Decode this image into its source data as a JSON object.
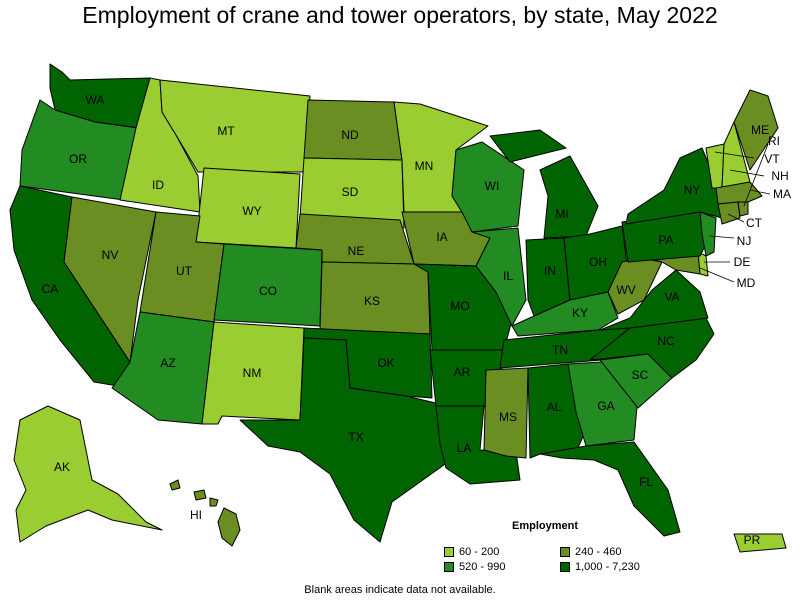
{
  "title": "Employment of crane and tower operators, by state, May 2022",
  "footnote": "Blank areas indicate data not available.",
  "colors": {
    "bin1": "#9acd32",
    "bin2": "#6b8e23",
    "bin3": "#228b22",
    "bin4": "#006400"
  },
  "legend": {
    "title": "Employment",
    "items": [
      {
        "label": "60 - 200",
        "bin": "bin1"
      },
      {
        "label": "240 - 460",
        "bin": "bin2"
      },
      {
        "label": "520 - 990",
        "bin": "bin3"
      },
      {
        "label": "1,000 - 7,230",
        "bin": "bin4"
      }
    ]
  },
  "states": {
    "WA": "bin4",
    "OR": "bin3",
    "CA": "bin4",
    "ID": "bin1",
    "NV": "bin2",
    "MT": "bin1",
    "WY": "bin1",
    "UT": "bin2",
    "AZ": "bin3",
    "CO": "bin3",
    "NM": "bin1",
    "ND": "bin2",
    "SD": "bin1",
    "NE": "bin2",
    "KS": "bin2",
    "OK": "bin4",
    "TX": "bin4",
    "MN": "bin1",
    "IA": "bin2",
    "MO": "bin4",
    "AR": "bin4",
    "LA": "bin4",
    "WI": "bin3",
    "IL": "bin3",
    "MI": "bin4",
    "IN": "bin4",
    "OH": "bin4",
    "KY": "bin3",
    "TN": "bin4",
    "MS": "bin2",
    "AL": "bin4",
    "GA": "bin3",
    "FL": "bin4",
    "SC": "bin3",
    "NC": "bin4",
    "VA": "bin4",
    "WV": "bin2",
    "PA": "bin4",
    "NY": "bin4",
    "ME": "bin2",
    "NH": "bin1",
    "VT": "bin1",
    "MA": "bin2",
    "RI": "bin2",
    "CT": "bin2",
    "NJ": "bin3",
    "DE": "bin1",
    "MD": "bin2",
    "AK": "bin1",
    "HI": "bin2",
    "PR": "bin1"
  }
}
